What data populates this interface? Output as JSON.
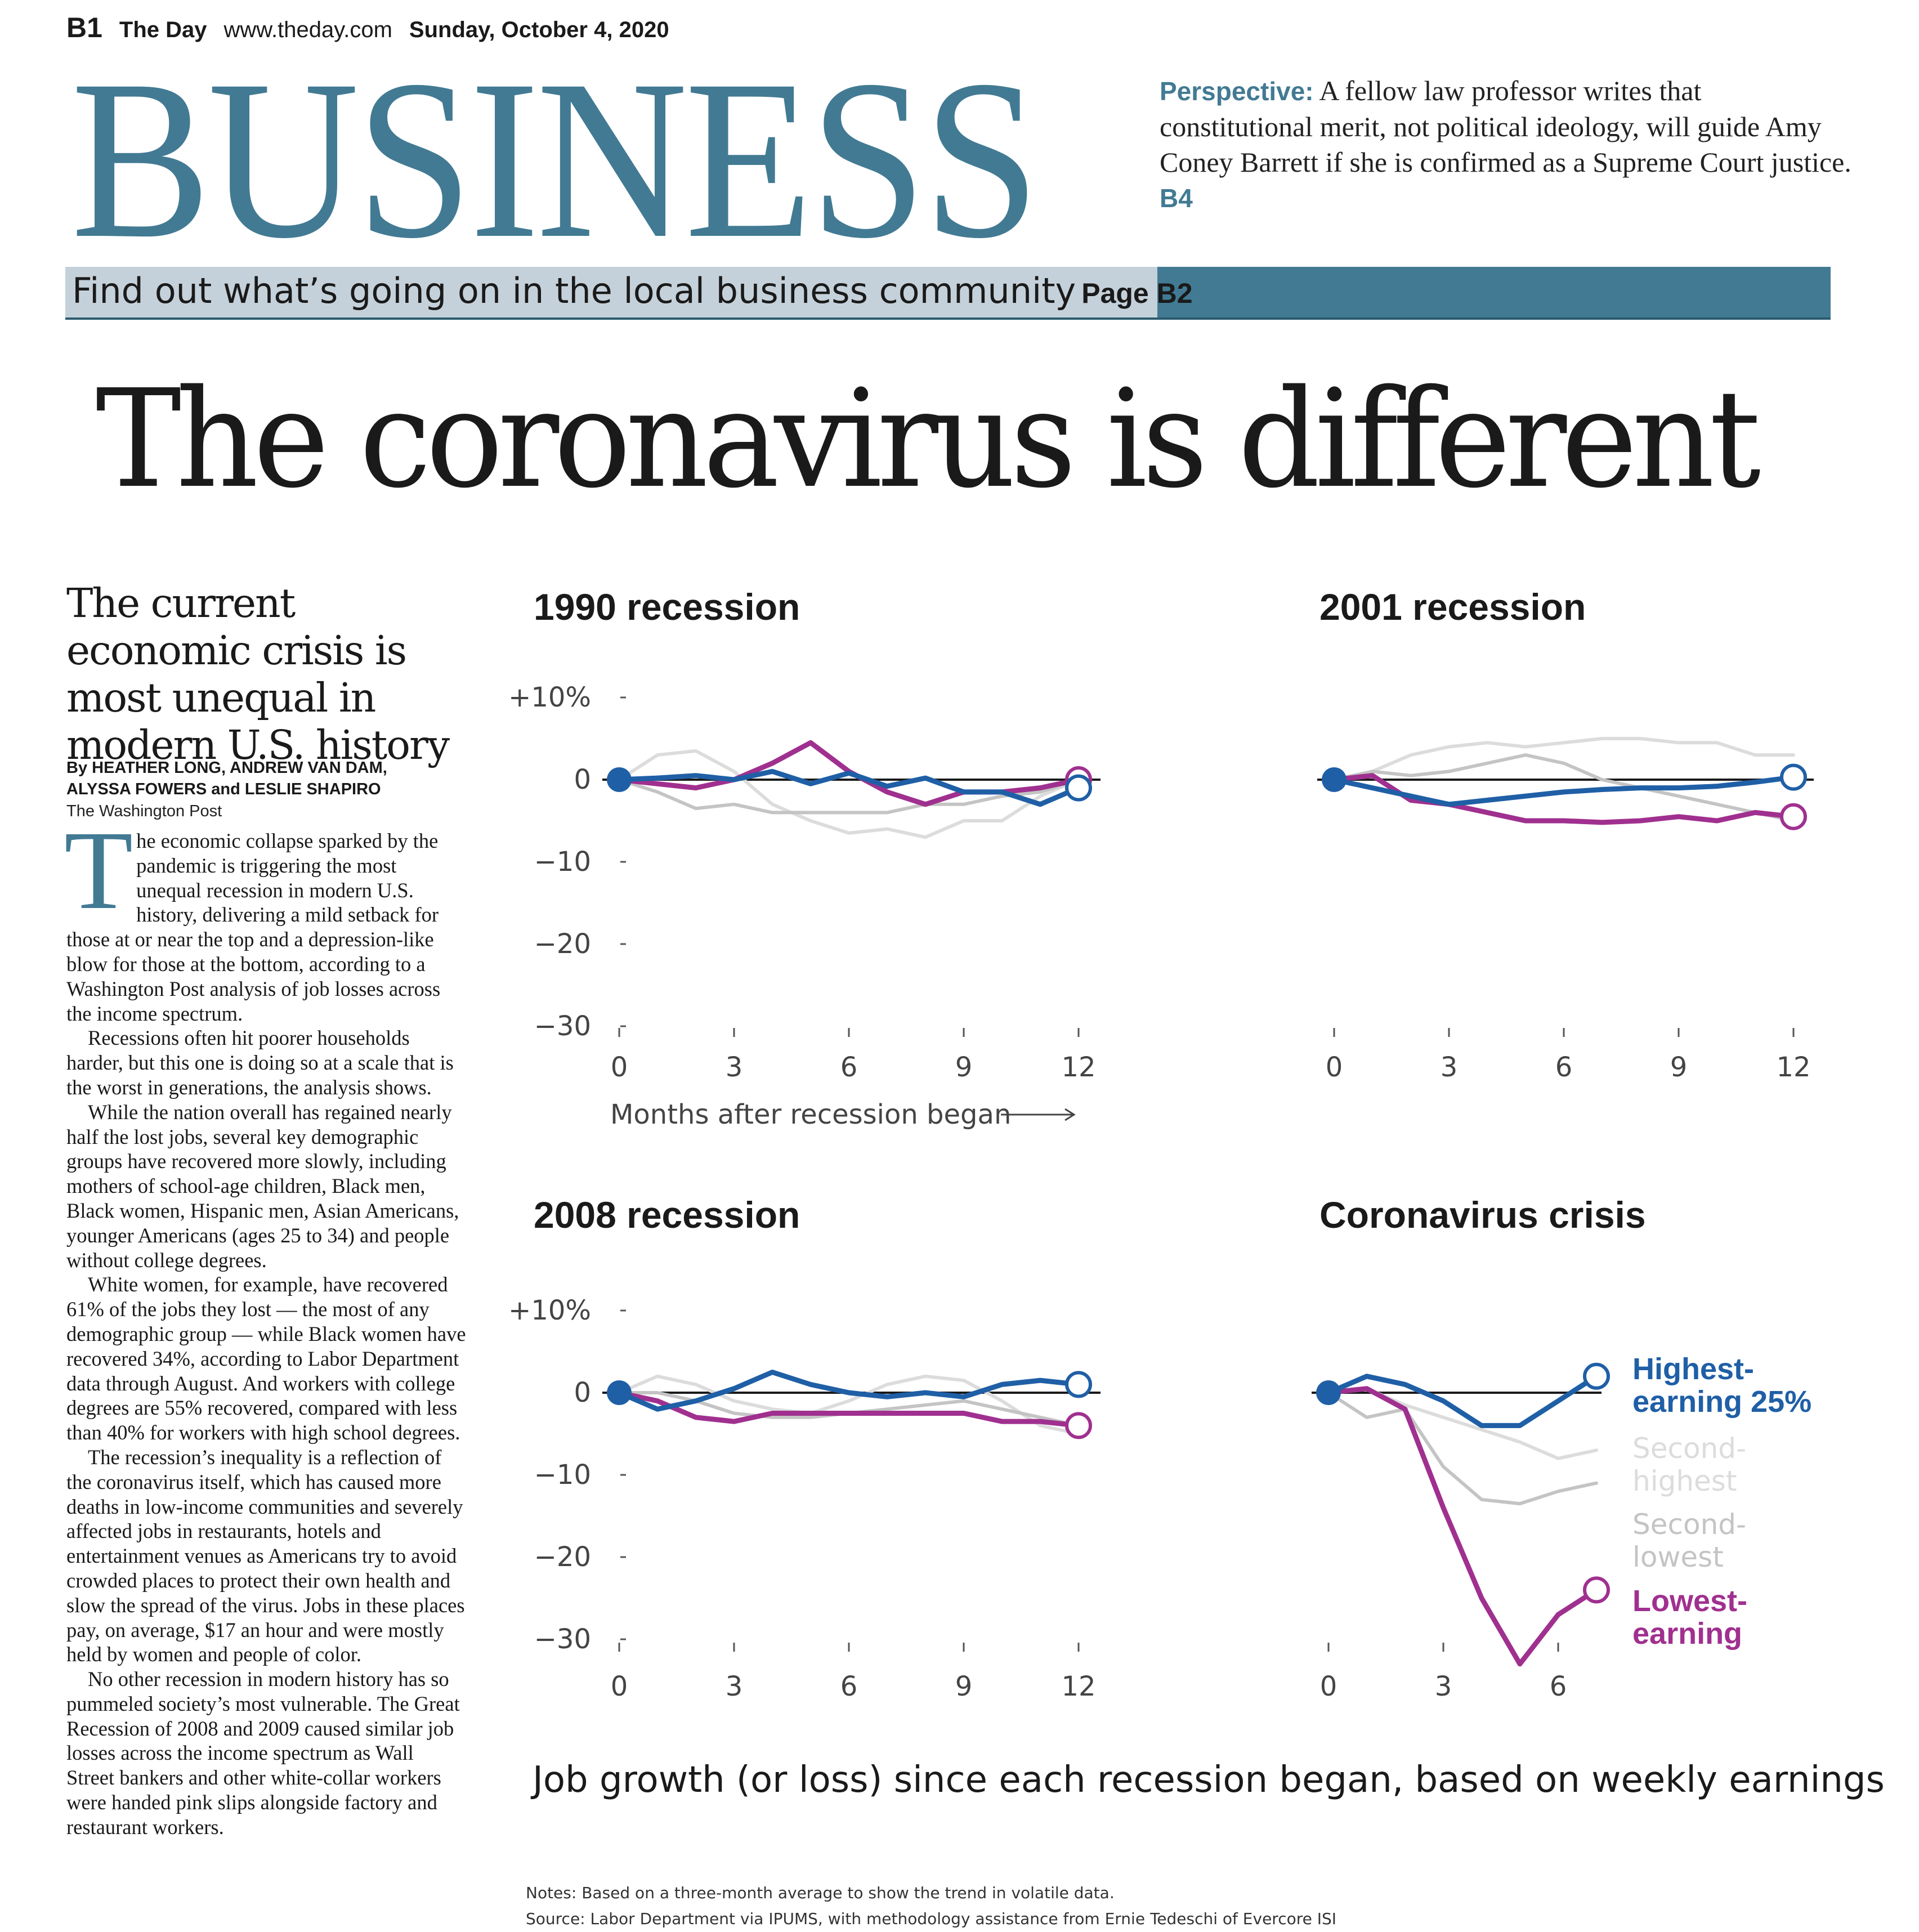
{
  "folio": {
    "page": "B1",
    "publication": "The Day",
    "url": "www.theday.com",
    "date": "Sunday, October 4, 2020"
  },
  "section_title": "BUSINESS",
  "perspective": {
    "label": "Perspective:",
    "text": "A fellow law professor writes that constitutional merit, not political ideology, will guide Amy Coney Barrett if she is confirmed as a Supreme Court justice.",
    "page_ref": "B4"
  },
  "promo": {
    "text": "Find out what’s going on in the local business community",
    "page": "Page B2"
  },
  "headline": "The coronavirus is different",
  "article": {
    "subhead": "The current economic crisis is most unequal in modern U.S. history",
    "byline_line1": "By HEATHER LONG, ANDREW VAN DAM,",
    "byline_line2": "ALYSSA FOWERS and LESLIE SHAPIRO",
    "credit": "The Washington Post",
    "drop_cap": "T",
    "paragraphs": [
      "he economic collapse sparked by the pandemic is triggering the most unequal recession in modern U.S. history, delivering a mild setback for those at or near the top and a depression-like blow for those at the bottom, according to a Washington Post analysis of job losses across the income spectrum.",
      "Recessions often hit poorer households harder, but this one is doing so at a scale that is the worst in generations, the analysis shows.",
      "While the nation overall has regained nearly half the lost jobs, several key demographic groups have recovered more slowly, including mothers of school-age children, Black men, Black women, Hispanic men, Asian Americans, younger Americans (ages 25 to 34) and people without college degrees.",
      "White women, for example, have recovered 61% of the jobs they lost — the most of any demographic group — while Black women have recovered 34%, according to Labor Department data through August. And workers with college degrees are 55% recovered, compared with less than 40% for workers with high school degrees.",
      "The recession’s inequality is a reflection of the coronavirus itself, which has caused more deaths in low-income communities and severely affected jobs in restaurants, hotels and entertainment venues as Americans try to avoid crowded places to protect their own health and slow the spread of the virus. Jobs in these places pay, on average, $17 an hour and were mostly held by women and people of color.",
      "No other recession in modern history has so pummeled society’s most vulnerable. The Great Recession of 2008 and 2009 caused similar job losses across the income spectrum as Wall Street bankers and other white-collar workers were handed pink slips alongside factory and restaurant workers."
    ]
  },
  "axis": {
    "y_ticks": [
      "+10%",
      "0",
      "−10",
      "−20",
      "−30"
    ],
    "x_label": "Months after recession began"
  },
  "legend": {
    "highest": "Highest-\nearning 25%",
    "second_highest": "Second-\nhighest",
    "second_lowest": "Second-\nlowest",
    "lowest": "Lowest-\nearning"
  },
  "colors": {
    "brand": "#427a93",
    "highest": "#1f5fa6",
    "lowest": "#a0308f",
    "mid_light": "#dcdcdc",
    "mid_dark": "#c4c4c4"
  },
  "caption": "Job growth (or loss) since each recession began, based on weekly earnings",
  "notes": [
    "Notes: Based on a three-month average to show the trend in volatile data.",
    "Source: Labor Department via IPUMS, with methodology assistance from Ernie Tedeschi of Evercore ISI"
  ],
  "chart_data": [
    {
      "type": "line",
      "title": "1990 recession",
      "xlabel": "Months after recession began",
      "ylabel": "",
      "ylim": [
        -30,
        10
      ],
      "x_ticks": [
        0,
        3,
        6,
        9,
        12
      ],
      "series": [
        {
          "name": "Highest-earning 25%",
          "x": [
            0,
            1,
            2,
            3,
            4,
            5,
            6,
            7,
            8,
            9,
            10,
            11,
            12
          ],
          "values": [
            0,
            0.2,
            0.5,
            0,
            1,
            -0.5,
            0.8,
            -0.8,
            0.2,
            -1.5,
            -1.5,
            -3,
            -1
          ]
        },
        {
          "name": "Second-highest",
          "x": [
            0,
            1,
            2,
            3,
            4,
            5,
            6,
            7,
            8,
            9,
            10,
            11,
            12
          ],
          "values": [
            0,
            3,
            3.5,
            1,
            -3,
            -5,
            -6.5,
            -6,
            -7,
            -5,
            -5,
            -2,
            0
          ]
        },
        {
          "name": "Second-lowest",
          "x": [
            0,
            1,
            2,
            3,
            4,
            5,
            6,
            7,
            8,
            9,
            10,
            11,
            12
          ],
          "values": [
            0,
            -1.5,
            -3.5,
            -3,
            -4,
            -4,
            -4,
            -4,
            -3,
            -3,
            -2,
            -1.5,
            0
          ]
        },
        {
          "name": "Lowest-earning",
          "x": [
            0,
            1,
            2,
            3,
            4,
            5,
            6,
            7,
            8,
            9,
            10,
            11,
            12
          ],
          "values": [
            0,
            -0.5,
            -1,
            0,
            2,
            4.5,
            1,
            -1.5,
            -3,
            -1.5,
            -1.5,
            -1,
            0
          ]
        }
      ]
    },
    {
      "type": "line",
      "title": "2001 recession",
      "xlabel": "",
      "ylabel": "",
      "ylim": [
        -30,
        10
      ],
      "x_ticks": [
        0,
        3,
        6,
        9,
        12
      ],
      "series": [
        {
          "name": "Highest-earning 25%",
          "x": [
            0,
            1,
            2,
            3,
            4,
            5,
            6,
            7,
            8,
            9,
            10,
            11,
            12
          ],
          "values": [
            0,
            -1,
            -2,
            -3,
            -2.5,
            -2,
            -1.5,
            -1.2,
            -1,
            -1,
            -0.8,
            -0.3,
            0.3
          ]
        },
        {
          "name": "Second-highest",
          "x": [
            0,
            1,
            2,
            3,
            4,
            5,
            6,
            7,
            8,
            9,
            10,
            11,
            12
          ],
          "values": [
            0,
            1,
            3,
            4,
            4.5,
            4,
            4.5,
            5,
            5,
            4.5,
            4.5,
            3,
            3
          ]
        },
        {
          "name": "Second-lowest",
          "x": [
            0,
            1,
            2,
            3,
            4,
            5,
            6,
            7,
            8,
            9,
            10,
            11,
            12
          ],
          "values": [
            0,
            1,
            0.5,
            1,
            2,
            3,
            2,
            0,
            -1,
            -2,
            -3,
            -4,
            -5
          ]
        },
        {
          "name": "Lowest-earning",
          "x": [
            0,
            1,
            2,
            3,
            4,
            5,
            6,
            7,
            8,
            9,
            10,
            11,
            12
          ],
          "values": [
            0,
            0.5,
            -2.5,
            -3,
            -4,
            -5,
            -5,
            -5.2,
            -5,
            -4.5,
            -5,
            -4,
            -4.5
          ]
        }
      ]
    },
    {
      "type": "line",
      "title": "2008 recession",
      "xlabel": "",
      "ylabel": "",
      "ylim": [
        -30,
        10
      ],
      "x_ticks": [
        0,
        3,
        6,
        9,
        12
      ],
      "series": [
        {
          "name": "Highest-earning 25%",
          "x": [
            0,
            1,
            2,
            3,
            4,
            5,
            6,
            7,
            8,
            9,
            10,
            11,
            12
          ],
          "values": [
            0,
            -2,
            -1,
            0.5,
            2.5,
            1,
            0,
            -0.5,
            0,
            -0.5,
            1,
            1.5,
            1
          ]
        },
        {
          "name": "Second-highest",
          "x": [
            0,
            1,
            2,
            3,
            4,
            5,
            6,
            7,
            8,
            9,
            10,
            11,
            12
          ],
          "values": [
            0,
            2,
            1,
            -1,
            -2,
            -2.5,
            -1,
            1,
            2,
            1.5,
            -1,
            -4,
            -5
          ]
        },
        {
          "name": "Second-lowest",
          "x": [
            0,
            1,
            2,
            3,
            4,
            5,
            6,
            7,
            8,
            9,
            10,
            11,
            12
          ],
          "values": [
            0,
            0,
            -1,
            -2.5,
            -3,
            -3,
            -2.5,
            -2,
            -1.5,
            -1,
            -2,
            -3,
            -4
          ]
        },
        {
          "name": "Lowest-earning",
          "x": [
            0,
            1,
            2,
            3,
            4,
            5,
            6,
            7,
            8,
            9,
            10,
            11,
            12
          ],
          "values": [
            0,
            -1,
            -3,
            -3.5,
            -2.5,
            -2.5,
            -2.5,
            -2.5,
            -2.5,
            -2.5,
            -3.5,
            -3.5,
            -4
          ]
        }
      ]
    },
    {
      "type": "line",
      "title": "Coronavirus crisis",
      "xlabel": "",
      "ylabel": "",
      "ylim": [
        -30,
        10
      ],
      "x_ticks": [
        0,
        3,
        6
      ],
      "series": [
        {
          "name": "Highest-earning 25%",
          "x": [
            0,
            1,
            2,
            3,
            4,
            5,
            6,
            7
          ],
          "values": [
            0,
            2,
            1,
            -1,
            -4,
            -4,
            -1,
            2
          ]
        },
        {
          "name": "Second-highest",
          "x": [
            0,
            1,
            2,
            3,
            4,
            5,
            6,
            7
          ],
          "values": [
            0,
            0.5,
            -1.5,
            -3,
            -4.5,
            -6,
            -8,
            -7
          ]
        },
        {
          "name": "Second-lowest",
          "x": [
            0,
            1,
            2,
            3,
            4,
            5,
            6,
            7
          ],
          "values": [
            0,
            -3,
            -2,
            -9,
            -13,
            -13.5,
            -12,
            -11
          ]
        },
        {
          "name": "Lowest-earning",
          "x": [
            0,
            1,
            2,
            3,
            4,
            5,
            6,
            7
          ],
          "values": [
            0,
            0.5,
            -2,
            -14,
            -25,
            -33,
            -27,
            -24
          ]
        }
      ]
    }
  ]
}
